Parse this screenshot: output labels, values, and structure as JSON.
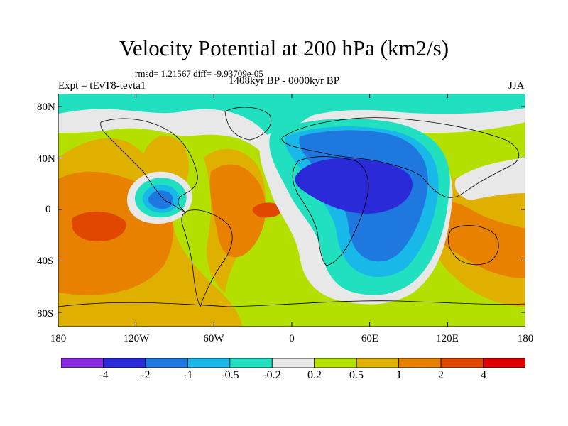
{
  "title": "Velocity Potential at 200 hPa (km2/s)",
  "stats": "rmsd= 1.21567 diff= -9.93709e-05",
  "period": "1408kyr BP - 0000kyr BP",
  "experiment": "Expt = tEvT8-tevta1",
  "season": "JJA",
  "lat_labels": [
    "80N",
    "40N",
    "0",
    "40S",
    "80S"
  ],
  "lon_labels": [
    "180",
    "120W",
    "60W",
    "0",
    "60E",
    "120E",
    "180"
  ],
  "colorbar": {
    "colors": [
      "#8a2be2",
      "#2a2ad8",
      "#1f78e0",
      "#18b8e8",
      "#20e0c0",
      "#e8e8e8",
      "#b4e000",
      "#e0b000",
      "#e88000",
      "#e04800",
      "#e00000"
    ],
    "labels": [
      "-4",
      "-2",
      "-1",
      "-0.5",
      "-0.2",
      "0.2",
      "0.5",
      "1",
      "2",
      "4"
    ]
  },
  "field_colors": {
    "background": "#b4e000",
    "neutral": "#e8e8e8",
    "neg_weak": "#20e0c0",
    "neg_mid": "#18b8e8",
    "neg_strong": "#1f78e0",
    "neg_max": "#2a2ad8",
    "pos_weak": "#e0b000",
    "pos_mid": "#e88000",
    "pos_max": "#e04800"
  }
}
